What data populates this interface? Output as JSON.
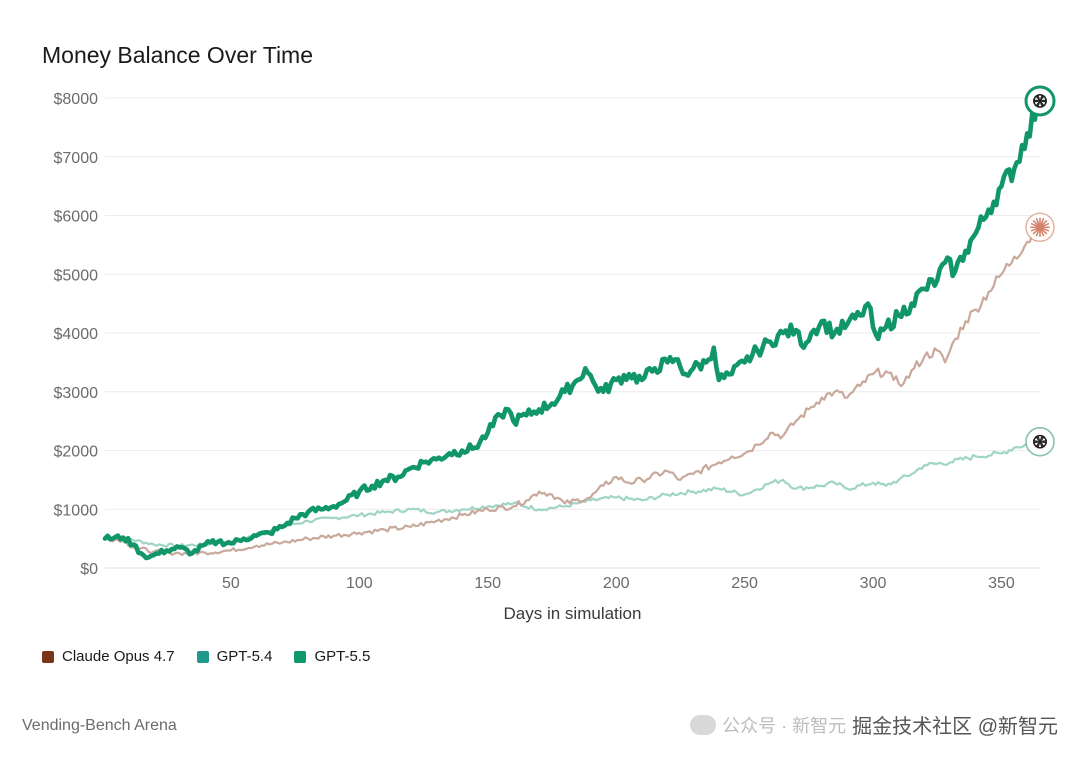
{
  "chart_data": {
    "type": "line",
    "title": "Money Balance Over Time",
    "xlabel": "Days in simulation",
    "ylabel": "",
    "xlim": [
      1,
      365
    ],
    "ylim": [
      0,
      8000
    ],
    "x_ticks": [
      50,
      100,
      150,
      200,
      250,
      300,
      350
    ],
    "y_ticks": [
      0,
      1000,
      2000,
      3000,
      4000,
      5000,
      6000,
      7000,
      8000
    ],
    "y_tick_labels": [
      "$0",
      "$1000",
      "$2000",
      "$3000",
      "$4000",
      "$5000",
      "$6000",
      "$7000",
      "$8000"
    ],
    "grid": true,
    "legend_position": "bottom-left",
    "series": [
      {
        "name": "Claude Opus 4.7",
        "legend_color": "#7b3418",
        "line_color": "#c9a99c",
        "end_marker": "asterisk",
        "marker_color": "#d4826a",
        "points": [
          [
            1,
            500
          ],
          [
            8,
            480
          ],
          [
            12,
            350
          ],
          [
            20,
            280
          ],
          [
            30,
            250
          ],
          [
            40,
            260
          ],
          [
            50,
            300
          ],
          [
            60,
            380
          ],
          [
            70,
            430
          ],
          [
            80,
            500
          ],
          [
            90,
            550
          ],
          [
            100,
            600
          ],
          [
            110,
            650
          ],
          [
            120,
            700
          ],
          [
            130,
            800
          ],
          [
            140,
            900
          ],
          [
            150,
            1000
          ],
          [
            160,
            1050
          ],
          [
            165,
            1150
          ],
          [
            170,
            1300
          ],
          [
            175,
            1250
          ],
          [
            180,
            1100
          ],
          [
            190,
            1200
          ],
          [
            195,
            1400
          ],
          [
            200,
            1550
          ],
          [
            205,
            1450
          ],
          [
            210,
            1500
          ],
          [
            220,
            1650
          ],
          [
            225,
            1500
          ],
          [
            230,
            1600
          ],
          [
            240,
            1800
          ],
          [
            245,
            1900
          ],
          [
            250,
            1950
          ],
          [
            255,
            2100
          ],
          [
            260,
            2300
          ],
          [
            265,
            2250
          ],
          [
            270,
            2500
          ],
          [
            275,
            2700
          ],
          [
            280,
            2900
          ],
          [
            285,
            3000
          ],
          [
            290,
            2900
          ],
          [
            295,
            3100
          ],
          [
            300,
            3300
          ],
          [
            305,
            3350
          ],
          [
            308,
            3200
          ],
          [
            312,
            3150
          ],
          [
            316,
            3400
          ],
          [
            320,
            3600
          ],
          [
            325,
            3700
          ],
          [
            328,
            3500
          ],
          [
            332,
            3900
          ],
          [
            336,
            4200
          ],
          [
            340,
            4400
          ],
          [
            345,
            4700
          ],
          [
            350,
            5000
          ],
          [
            355,
            5300
          ],
          [
            360,
            5550
          ],
          [
            365,
            5800
          ]
        ]
      },
      {
        "name": "GPT-5.4",
        "legend_color": "#1f9a8a",
        "line_color": "#9fd4c6",
        "end_marker": "openai-logo",
        "marker_color": "#3a9a80",
        "points": [
          [
            1,
            500
          ],
          [
            10,
            500
          ],
          [
            20,
            400
          ],
          [
            30,
            380
          ],
          [
            40,
            400
          ],
          [
            50,
            450
          ],
          [
            60,
            550
          ],
          [
            70,
            700
          ],
          [
            80,
            800
          ],
          [
            90,
            850
          ],
          [
            100,
            900
          ],
          [
            110,
            950
          ],
          [
            120,
            1000
          ],
          [
            130,
            950
          ],
          [
            140,
            1000
          ],
          [
            150,
            1050
          ],
          [
            160,
            1100
          ],
          [
            170,
            1000
          ],
          [
            180,
            1050
          ],
          [
            190,
            1150
          ],
          [
            200,
            1200
          ],
          [
            210,
            1150
          ],
          [
            220,
            1250
          ],
          [
            230,
            1300
          ],
          [
            240,
            1350
          ],
          [
            250,
            1250
          ],
          [
            260,
            1450
          ],
          [
            265,
            1500
          ],
          [
            270,
            1350
          ],
          [
            280,
            1400
          ],
          [
            285,
            1450
          ],
          [
            290,
            1350
          ],
          [
            300,
            1450
          ],
          [
            305,
            1400
          ],
          [
            310,
            1500
          ],
          [
            315,
            1600
          ],
          [
            320,
            1750
          ],
          [
            330,
            1800
          ],
          [
            340,
            1900
          ],
          [
            350,
            1950
          ],
          [
            355,
            2050
          ],
          [
            360,
            2100
          ],
          [
            365,
            2150
          ]
        ]
      },
      {
        "name": "GPT-5.5",
        "legend_color": "#109a6a",
        "line_color": "#119669",
        "end_marker": "openai-logo",
        "marker_color": "#119669",
        "points": [
          [
            1,
            500
          ],
          [
            8,
            520
          ],
          [
            12,
            400
          ],
          [
            15,
            250
          ],
          [
            18,
            180
          ],
          [
            20,
            220
          ],
          [
            25,
            300
          ],
          [
            30,
            350
          ],
          [
            35,
            250
          ],
          [
            40,
            400
          ],
          [
            45,
            450
          ],
          [
            50,
            420
          ],
          [
            55,
            500
          ],
          [
            60,
            550
          ],
          [
            65,
            600
          ],
          [
            70,
            700
          ],
          [
            75,
            850
          ],
          [
            80,
            950
          ],
          [
            85,
            1000
          ],
          [
            90,
            1050
          ],
          [
            95,
            1150
          ],
          [
            100,
            1300
          ],
          [
            105,
            1400
          ],
          [
            110,
            1500
          ],
          [
            115,
            1550
          ],
          [
            120,
            1700
          ],
          [
            125,
            1800
          ],
          [
            130,
            1850
          ],
          [
            135,
            1950
          ],
          [
            140,
            2000
          ],
          [
            145,
            2050
          ],
          [
            150,
            2300
          ],
          [
            155,
            2600
          ],
          [
            158,
            2700
          ],
          [
            160,
            2500
          ],
          [
            165,
            2600
          ],
          [
            170,
            2700
          ],
          [
            175,
            2800
          ],
          [
            180,
            3000
          ],
          [
            185,
            3200
          ],
          [
            188,
            3400
          ],
          [
            192,
            3100
          ],
          [
            195,
            3000
          ],
          [
            200,
            3200
          ],
          [
            205,
            3300
          ],
          [
            210,
            3200
          ],
          [
            215,
            3400
          ],
          [
            220,
            3500
          ],
          [
            223,
            3550
          ],
          [
            227,
            3300
          ],
          [
            230,
            3400
          ],
          [
            235,
            3500
          ],
          [
            238,
            3750
          ],
          [
            240,
            3200
          ],
          [
            245,
            3300
          ],
          [
            250,
            3500
          ],
          [
            255,
            3700
          ],
          [
            260,
            3850
          ],
          [
            265,
            4000
          ],
          [
            270,
            4050
          ],
          [
            272,
            3800
          ],
          [
            276,
            4000
          ],
          [
            280,
            4200
          ],
          [
            285,
            4000
          ],
          [
            290,
            4150
          ],
          [
            295,
            4300
          ],
          [
            298,
            4500
          ],
          [
            300,
            4100
          ],
          [
            302,
            3900
          ],
          [
            305,
            4100
          ],
          [
            310,
            4300
          ],
          [
            315,
            4500
          ],
          [
            320,
            4750
          ],
          [
            325,
            4900
          ],
          [
            328,
            5200
          ],
          [
            332,
            5050
          ],
          [
            336,
            5400
          ],
          [
            340,
            5700
          ],
          [
            345,
            6100
          ],
          [
            350,
            6500
          ],
          [
            355,
            6800
          ],
          [
            360,
            7400
          ],
          [
            365,
            7950
          ]
        ]
      }
    ]
  },
  "footer": {
    "source": "Vending-Bench Arena"
  },
  "watermark": {
    "text": "掘金技术社区 @新智元",
    "sub": "公众号 · 新智元"
  }
}
